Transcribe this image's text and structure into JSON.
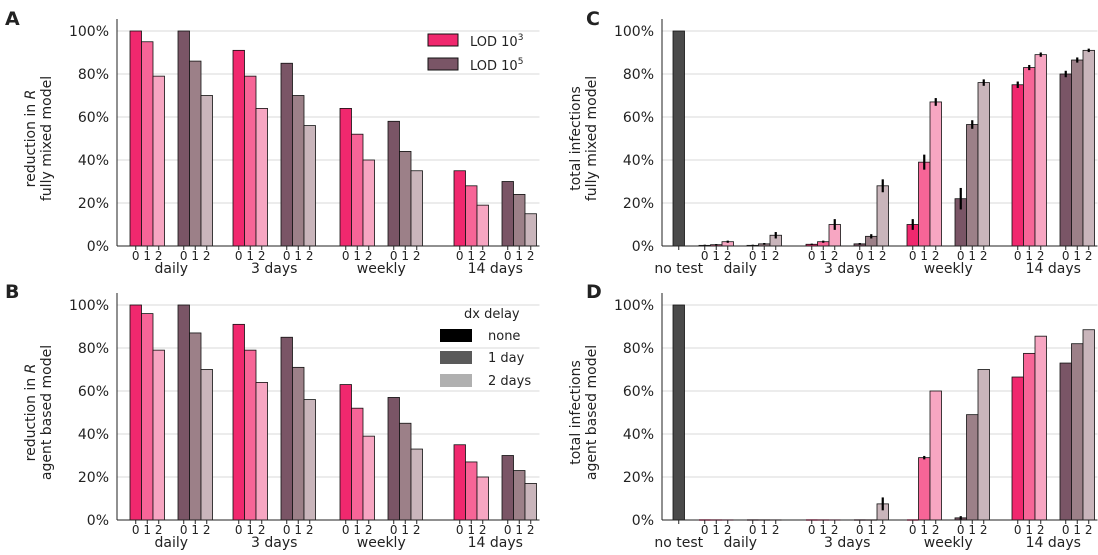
{
  "colors": {
    "lod3": [
      "#f0286e",
      "#f76597",
      "#f7a6c2"
    ],
    "lod5": [
      "#7a5566",
      "#9c8088",
      "#c9b5bb"
    ],
    "notest": "#4a4a4a",
    "legend_delay": [
      "#000000",
      "#5a5a5a",
      "#b0b0b0"
    ],
    "grid": "#d9d9d9"
  },
  "legend_lod": {
    "items": [
      {
        "base": "LOD 10",
        "sup": "3"
      },
      {
        "base": "LOD 10",
        "sup": "5"
      }
    ]
  },
  "legend_delay": {
    "title": "dx delay",
    "items": [
      "none",
      "1 day",
      "2 days"
    ]
  },
  "chart_data": [
    {
      "panel": "A",
      "type": "bar",
      "ylabel": [
        "reduction in R",
        "fully mixed model"
      ],
      "ylim": [
        0,
        100
      ],
      "yticks": [
        "0%",
        "20%",
        "40%",
        "60%",
        "80%",
        "100%"
      ],
      "groups": [
        "daily",
        "3 days",
        "weekly",
        "14 days"
      ],
      "delays": [
        "0",
        "1",
        "2"
      ],
      "series": [
        {
          "name": "LOD 10^3",
          "values": [
            [
              100,
              95,
              79
            ],
            [
              91,
              79,
              64
            ],
            [
              64,
              52,
              40
            ],
            [
              35,
              28,
              19
            ]
          ]
        },
        {
          "name": "LOD 10^5",
          "values": [
            [
              100,
              86,
              70
            ],
            [
              85,
              70,
              56
            ],
            [
              58,
              44,
              35
            ],
            [
              30,
              24,
              15
            ]
          ]
        }
      ]
    },
    {
      "panel": "B",
      "type": "bar",
      "ylabel": [
        "reduction in R",
        "agent based model"
      ],
      "ylim": [
        0,
        100
      ],
      "yticks": [
        "0%",
        "20%",
        "40%",
        "60%",
        "80%",
        "100%"
      ],
      "groups": [
        "daily",
        "3 days",
        "weekly",
        "14 days"
      ],
      "delays": [
        "0",
        "1",
        "2"
      ],
      "series": [
        {
          "name": "LOD 10^3",
          "values": [
            [
              100,
              96,
              79
            ],
            [
              91,
              79,
              64
            ],
            [
              63,
              52,
              39
            ],
            [
              35,
              27,
              20
            ]
          ]
        },
        {
          "name": "LOD 10^5",
          "values": [
            [
              100,
              87,
              70
            ],
            [
              85,
              71,
              56
            ],
            [
              57,
              45,
              33
            ],
            [
              30,
              23,
              17
            ]
          ]
        }
      ]
    },
    {
      "panel": "C",
      "type": "bar",
      "ylabel": [
        "total infections",
        "fully mixed model"
      ],
      "ylim": [
        0,
        100
      ],
      "yticks": [
        "0%",
        "20%",
        "40%",
        "60%",
        "80%",
        "100%"
      ],
      "no_test": {
        "label": "no test",
        "value": 100
      },
      "groups": [
        "daily",
        "3 days",
        "weekly",
        "14 days"
      ],
      "delays": [
        "0",
        "1",
        "2"
      ],
      "series": [
        {
          "name": "LOD 10^3",
          "values": [
            [
              0.3,
              0.6,
              2
            ],
            [
              0.8,
              2,
              10
            ],
            [
              10,
              39,
              67
            ],
            [
              75,
              83,
              89
            ]
          ],
          "errors": [
            [
              0.3,
              0.3,
              0.5
            ],
            [
              0.3,
              0.5,
              2.5
            ],
            [
              2.5,
              3.5,
              1.8
            ],
            [
              1.5,
              1.2,
              1
            ]
          ]
        },
        {
          "name": "LOD 10^5",
          "values": [
            [
              0.3,
              1,
              5
            ],
            [
              1,
              4.5,
              28
            ],
            [
              22,
              56.5,
              76
            ],
            [
              80,
              86.5,
              91
            ]
          ],
          "errors": [
            [
              0.3,
              0.4,
              1.5
            ],
            [
              0.4,
              1,
              3
            ],
            [
              5,
              2,
              1.5
            ],
            [
              1.5,
              1.2,
              0.8
            ]
          ]
        }
      ]
    },
    {
      "panel": "D",
      "type": "bar",
      "ylabel": [
        "total infections",
        "agent based model"
      ],
      "ylim": [
        0,
        100
      ],
      "yticks": [
        "0%",
        "20%",
        "40%",
        "60%",
        "80%",
        "100%"
      ],
      "no_test": {
        "label": "no test",
        "value": 100
      },
      "groups": [
        "daily",
        "3 days",
        "weekly",
        "14 days"
      ],
      "delays": [
        "0",
        "1",
        "2"
      ],
      "series": [
        {
          "name": "LOD 10^3",
          "values": [
            [
              0,
              0,
              0
            ],
            [
              0,
              0,
              0
            ],
            [
              0,
              29,
              60
            ],
            [
              66.5,
              77.5,
              85.5
            ]
          ],
          "errors": [
            [
              0,
              0,
              0
            ],
            [
              0,
              0,
              0
            ],
            [
              0,
              0.8,
              0
            ],
            [
              0,
              0,
              0
            ]
          ]
        },
        {
          "name": "LOD 10^5",
          "values": [
            [
              0,
              0,
              0
            ],
            [
              0,
              0,
              7.5
            ],
            [
              1,
              49,
              70
            ],
            [
              73,
              82,
              88.5
            ]
          ],
          "errors": [
            [
              0,
              0,
              0
            ],
            [
              0,
              0,
              3
            ],
            [
              0.8,
              0,
              0
            ],
            [
              0,
              0,
              0
            ]
          ]
        }
      ]
    }
  ]
}
